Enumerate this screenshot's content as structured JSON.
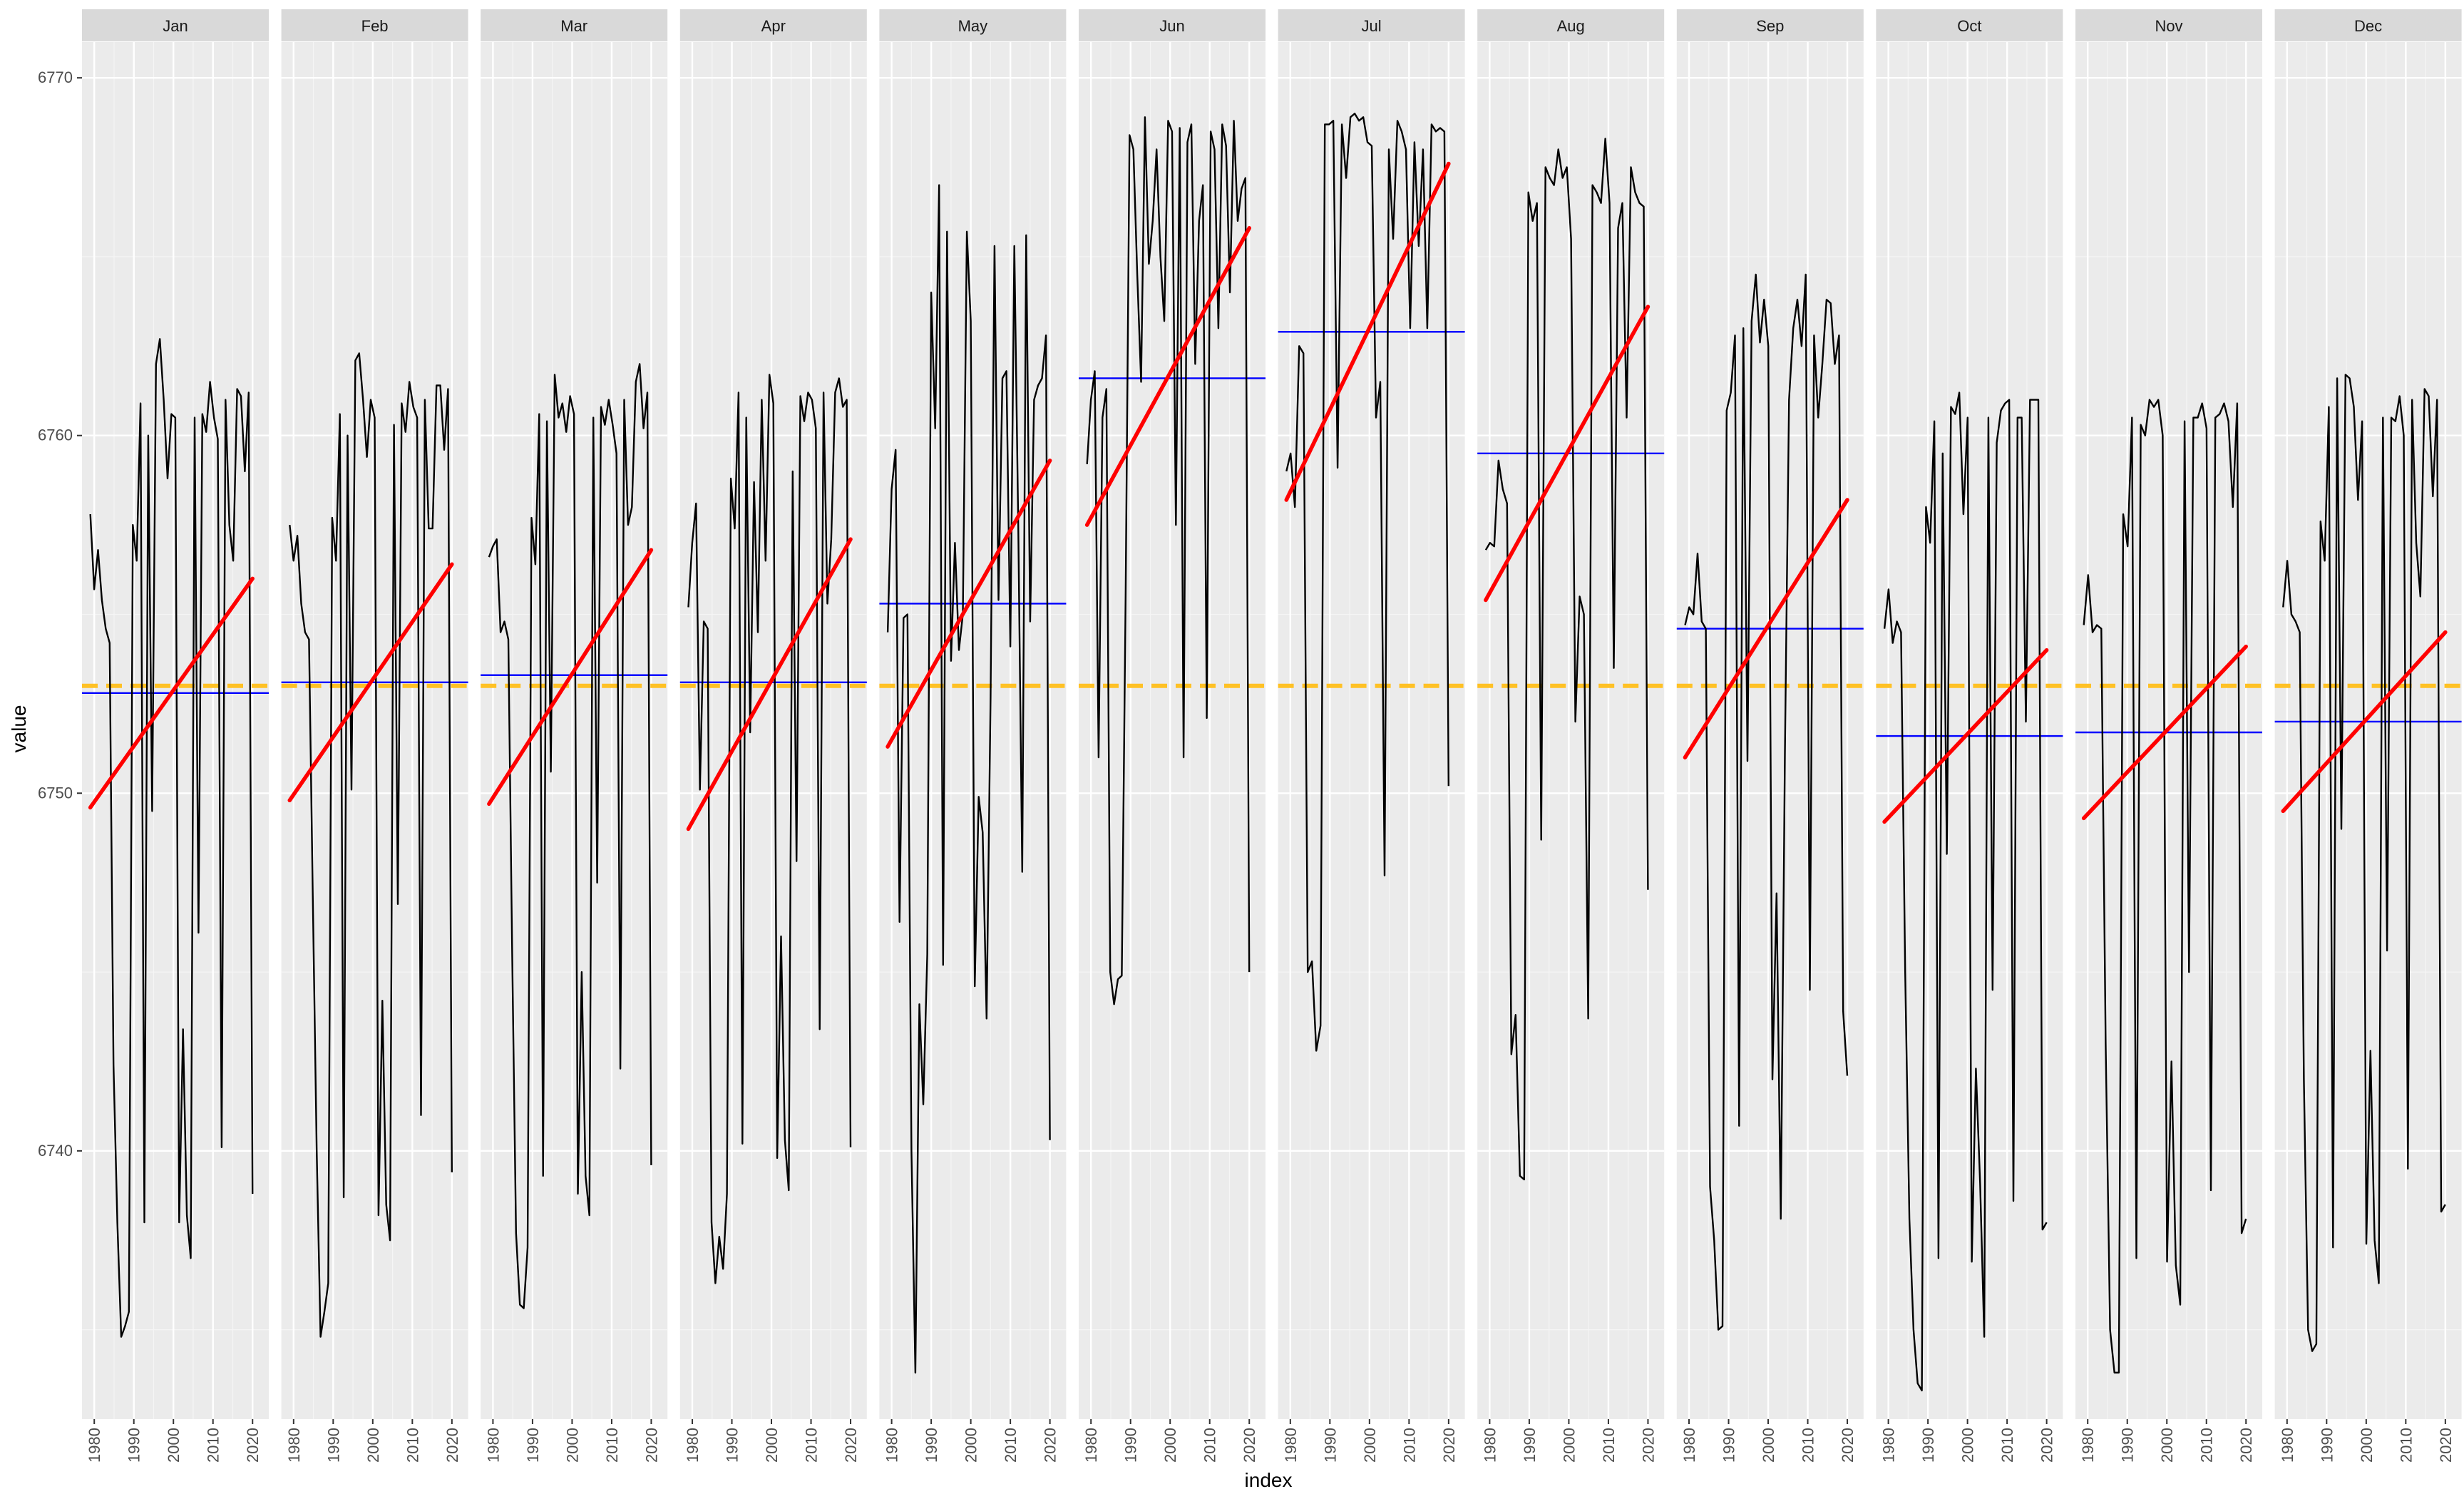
{
  "chart_data": {
    "type": "line",
    "xlabel": "index",
    "ylabel": "value",
    "ylim": [
      6732.5,
      6771
    ],
    "xlim": [
      1976.9,
      2024.1
    ],
    "y_ticks": [
      6740,
      6750,
      6760,
      6770
    ],
    "x_ticks": [
      1980,
      1990,
      2000,
      2010,
      2020
    ],
    "grid": true,
    "legend": "none",
    "overall_mean": 6753.0,
    "colors": {
      "panel_bg": "#ebebeb",
      "strip_bg": "#d9d9d9",
      "grid_major": "#ffffff",
      "grid_minor": "#f5f5f5",
      "series_line": "#000000",
      "trend_line": "#ff0000",
      "month_mean_line": "#0000ff",
      "overall_mean_line": "#ffc125"
    },
    "facets": [
      {
        "month": "Jan",
        "mean": 6752.8,
        "trend": [
          [
            1979,
            6749.6
          ],
          [
            2020,
            6756.0
          ]
        ],
        "values": [
          6757.8,
          6755.7,
          6756.8,
          6755.4,
          6754.6,
          6754.2,
          6742.4,
          6738.0,
          6734.8,
          6735.1,
          6735.5,
          6757.5,
          6756.5,
          6760.9,
          6738.0,
          6760.0,
          6749.5,
          6762.0,
          6762.7,
          6761.0,
          6758.8,
          6760.6,
          6760.5,
          6738.0,
          6743.4,
          6738.2,
          6737.0,
          6760.5,
          6746.1,
          6760.6,
          6760.1,
          6761.5,
          6760.5,
          6759.9,
          6740.1,
          6761.0,
          6757.5,
          6756.5,
          6761.3,
          6761.1,
          6759.0,
          6761.2,
          6738.8
        ]
      },
      {
        "month": "Feb",
        "mean": 6753.1,
        "trend": [
          [
            1979,
            6749.8
          ],
          [
            2020,
            6756.4
          ]
        ],
        "values": [
          6757.5,
          6756.5,
          6757.2,
          6755.3,
          6754.5,
          6754.3,
          6747.0,
          6740.0,
          6734.8,
          6735.5,
          6736.3,
          6757.7,
          6756.5,
          6760.6,
          6738.7,
          6760.0,
          6750.1,
          6762.1,
          6762.3,
          6761.0,
          6759.4,
          6761.0,
          6760.5,
          6738.2,
          6744.2,
          6738.5,
          6737.5,
          6760.3,
          6746.9,
          6760.9,
          6760.1,
          6761.5,
          6760.8,
          6760.5,
          6741.0,
          6761.0,
          6757.4,
          6757.4,
          6761.4,
          6761.4,
          6759.6,
          6761.3,
          6739.4
        ]
      },
      {
        "month": "Mar",
        "mean": 6753.3,
        "trend": [
          [
            1979,
            6749.7
          ],
          [
            2020,
            6756.8
          ]
        ],
        "values": [
          6756.6,
          6756.9,
          6757.1,
          6754.5,
          6754.8,
          6754.3,
          6745.5,
          6737.7,
          6735.7,
          6735.6,
          6737.3,
          6757.7,
          6756.4,
          6760.6,
          6739.3,
          6760.4,
          6750.6,
          6761.7,
          6760.5,
          6760.9,
          6760.1,
          6761.1,
          6760.6,
          6738.8,
          6745.0,
          6739.3,
          6738.2,
          6760.5,
          6747.5,
          6760.8,
          6760.3,
          6761.0,
          6760.3,
          6759.5,
          6742.3,
          6761.0,
          6757.5,
          6758.0,
          6761.5,
          6762.0,
          6760.2,
          6761.2,
          6739.6
        ]
      },
      {
        "month": "Apr",
        "mean": 6753.1,
        "trend": [
          [
            1979,
            6749.0
          ],
          [
            2020,
            6757.1
          ]
        ],
        "values": [
          6755.2,
          6757.0,
          6758.1,
          6750.1,
          6754.8,
          6754.6,
          6738.0,
          6736.3,
          6737.6,
          6736.7,
          6738.8,
          6758.8,
          6757.4,
          6761.2,
          6740.2,
          6760.5,
          6751.7,
          6758.7,
          6754.5,
          6761.0,
          6756.5,
          6761.7,
          6760.9,
          6739.8,
          6746.0,
          6740.3,
          6738.9,
          6759.0,
          6748.1,
          6761.1,
          6760.4,
          6761.2,
          6761.0,
          6760.2,
          6743.4,
          6761.2,
          6755.3,
          6757.1,
          6761.2,
          6761.6,
          6760.8,
          6761.0,
          6740.1
        ]
      },
      {
        "month": "May",
        "mean": 6755.3,
        "trend": [
          [
            1979,
            6751.3
          ],
          [
            2020,
            6759.3
          ]
        ],
        "values": [
          6754.5,
          6758.5,
          6759.6,
          6746.4,
          6754.9,
          6755.0,
          6740.0,
          6733.8,
          6744.1,
          6741.3,
          6745.5,
          6764.0,
          6760.2,
          6767.0,
          6745.2,
          6765.7,
          6753.7,
          6757.0,
          6754.0,
          6755.0,
          6765.7,
          6763.2,
          6744.6,
          6749.9,
          6748.9,
          6743.7,
          6752.7,
          6765.3,
          6755.4,
          6761.6,
          6761.8,
          6754.1,
          6765.3,
          6757.5,
          6747.8,
          6765.6,
          6754.8,
          6761.0,
          6761.4,
          6761.6,
          6762.8,
          6740.3
        ]
      },
      {
        "month": "Jun",
        "mean": 6761.6,
        "trend": [
          [
            1979,
            6757.5
          ],
          [
            2020,
            6765.8
          ]
        ],
        "values": [
          6759.2,
          6761.0,
          6761.8,
          6751.0,
          6760.5,
          6761.3,
          6745.0,
          6744.1,
          6744.8,
          6744.9,
          6755.5,
          6768.4,
          6768.0,
          6764.5,
          6761.5,
          6768.9,
          6764.8,
          6766.0,
          6768.0,
          6765.0,
          6763.2,
          6768.8,
          6768.5,
          6757.5,
          6768.6,
          6751.0,
          6768.2,
          6768.7,
          6762.0,
          6766.0,
          6767.0,
          6752.1,
          6768.5,
          6768.0,
          6763.0,
          6768.7,
          6768.1,
          6764.0,
          6768.8,
          6766.0,
          6766.9,
          6767.2,
          6745.0
        ]
      },
      {
        "month": "Jul",
        "mean": 6762.9,
        "trend": [
          [
            1979,
            6758.2
          ],
          [
            2020,
            6767.6
          ]
        ],
        "values": [
          6759.0,
          6759.5,
          6758.0,
          6762.5,
          6762.3,
          6745.0,
          6745.3,
          6742.8,
          6743.5,
          6768.7,
          6768.7,
          6768.8,
          6759.1,
          6768.7,
          6767.2,
          6768.9,
          6769.0,
          6768.8,
          6768.9,
          6768.2,
          6768.1,
          6760.5,
          6761.5,
          6747.7,
          6768.0,
          6765.5,
          6768.8,
          6768.5,
          6768.0,
          6763.0,
          6768.2,
          6765.3,
          6768.0,
          6763.0,
          6768.7,
          6768.5,
          6768.6,
          6768.5,
          6750.2
        ]
      },
      {
        "month": "Aug",
        "mean": 6759.5,
        "trend": [
          [
            1979,
            6755.4
          ],
          [
            2020,
            6763.6
          ]
        ],
        "values": [
          6756.8,
          6757.0,
          6756.9,
          6759.3,
          6758.5,
          6758.1,
          6742.7,
          6743.8,
          6739.3,
          6739.2,
          6766.8,
          6766.0,
          6766.5,
          6748.7,
          6767.5,
          6767.2,
          6767.0,
          6768.0,
          6767.2,
          6767.5,
          6765.5,
          6752.0,
          6755.5,
          6755.0,
          6743.7,
          6767.0,
          6766.8,
          6766.5,
          6768.3,
          6766.5,
          6753.5,
          6765.8,
          6766.5,
          6760.5,
          6767.5,
          6766.8,
          6766.5,
          6766.4,
          6747.3
        ]
      },
      {
        "month": "Sep",
        "mean": 6754.6,
        "trend": [
          [
            1979,
            6751.0
          ],
          [
            2020,
            6758.2
          ]
        ],
        "values": [
          6754.7,
          6755.2,
          6755.0,
          6756.7,
          6754.8,
          6754.6,
          6739.0,
          6737.5,
          6735.0,
          6735.1,
          6760.7,
          6761.2,
          6762.8,
          6740.7,
          6763.0,
          6750.9,
          6763.2,
          6764.5,
          6762.6,
          6763.8,
          6762.5,
          6742.0,
          6747.2,
          6738.1,
          6751.1,
          6761.0,
          6763.0,
          6763.8,
          6762.5,
          6764.5,
          6744.5,
          6762.8,
          6760.5,
          6762.0,
          6763.8,
          6763.7,
          6762.0,
          6762.8,
          6743.9,
          6742.1
        ]
      },
      {
        "month": "Oct",
        "mean": 6751.6,
        "trend": [
          [
            1979,
            6749.2
          ],
          [
            2020,
            6754.0
          ]
        ],
        "values": [
          6754.6,
          6755.7,
          6754.2,
          6754.8,
          6754.5,
          6745.0,
          6738.1,
          6735.0,
          6733.5,
          6733.3,
          6758.0,
          6757.0,
          6760.4,
          6737.0,
          6759.5,
          6748.3,
          6760.8,
          6760.6,
          6761.2,
          6757.8,
          6760.5,
          6736.9,
          6742.3,
          6739.1,
          6734.8,
          6760.5,
          6744.5,
          6759.8,
          6760.7,
          6760.9,
          6761.0,
          6738.6,
          6760.5,
          6760.5,
          6752.0,
          6761.0,
          6761.0,
          6761.0,
          6737.8,
          6738.0
        ]
      },
      {
        "month": "Nov",
        "mean": 6751.7,
        "trend": [
          [
            1979,
            6749.3
          ],
          [
            2020,
            6754.1
          ]
        ],
        "values": [
          6754.7,
          6756.1,
          6754.5,
          6754.7,
          6754.6,
          6743.0,
          6735.0,
          6733.8,
          6733.8,
          6757.8,
          6756.9,
          6760.5,
          6737.0,
          6760.3,
          6760.0,
          6761.0,
          6760.8,
          6761.0,
          6760.0,
          6736.9,
          6742.5,
          6736.8,
          6735.7,
          6760.4,
          6745.0,
          6760.5,
          6760.5,
          6760.9,
          6760.2,
          6738.9,
          6760.5,
          6760.6,
          6760.9,
          6760.4,
          6758.0,
          6760.9,
          6737.7,
          6738.1
        ]
      },
      {
        "month": "Dec",
        "mean": 6752.0,
        "trend": [
          [
            1979,
            6749.5
          ],
          [
            2020,
            6754.5
          ]
        ],
        "values": [
          6755.2,
          6756.5,
          6755.0,
          6754.8,
          6754.5,
          6742.0,
          6735.0,
          6734.4,
          6734.6,
          6757.6,
          6756.5,
          6760.8,
          6737.3,
          6761.6,
          6749.0,
          6761.7,
          6761.6,
          6760.8,
          6758.2,
          6760.4,
          6737.4,
          6742.8,
          6737.5,
          6736.3,
          6760.5,
          6745.6,
          6760.5,
          6760.4,
          6761.1,
          6760.0,
          6739.5,
          6761.0,
          6757.0,
          6755.5,
          6761.3,
          6761.1,
          6758.3,
          6761.0,
          6738.3,
          6738.5
        ]
      }
    ]
  }
}
